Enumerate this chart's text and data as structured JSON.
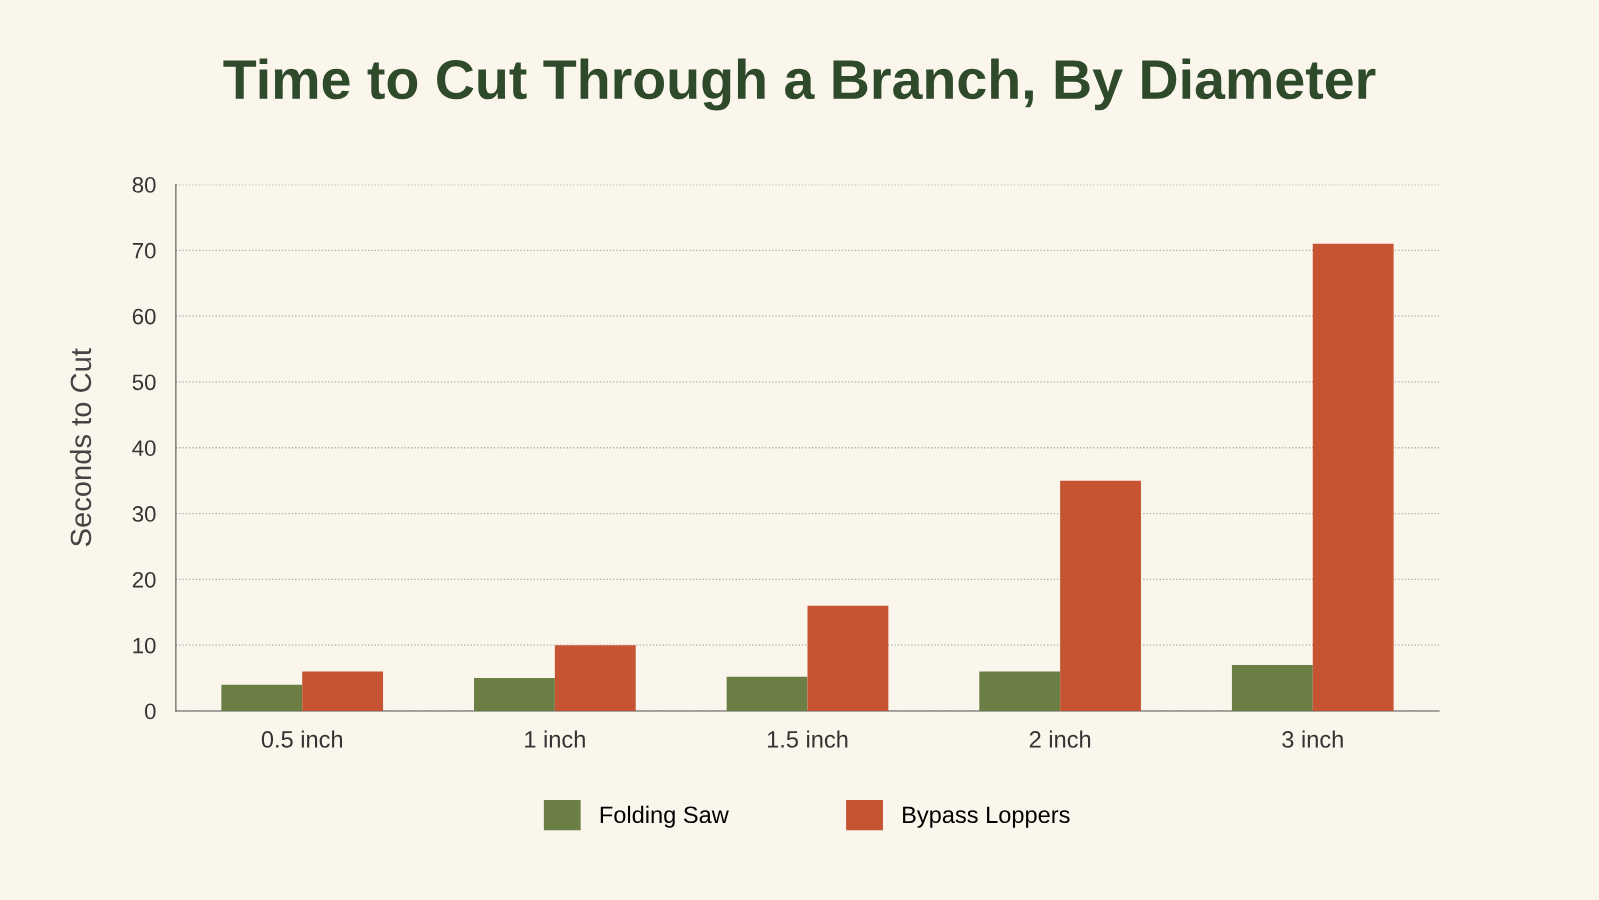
{
  "chart_data": {
    "type": "bar",
    "title": "Time to Cut Through a Branch, By Diameter",
    "ylabel": "Seconds to Cut",
    "categories": [
      "0.5 inch",
      "1 inch",
      "1.5 inch",
      "2 inch",
      "3 inch"
    ],
    "series": [
      {
        "name": "Folding Saw",
        "color": "#6b7f45",
        "values": [
          4,
          5,
          5.2,
          6,
          7
        ]
      },
      {
        "name": "Bypass Loppers",
        "color": "#c65432",
        "values": [
          6,
          10,
          16,
          35,
          71
        ]
      }
    ],
    "ylim": [
      0,
      80
    ],
    "yticks": [
      0,
      10,
      20,
      30,
      40,
      50,
      60,
      70,
      80
    ],
    "grid": "y",
    "legend": "bottom"
  }
}
